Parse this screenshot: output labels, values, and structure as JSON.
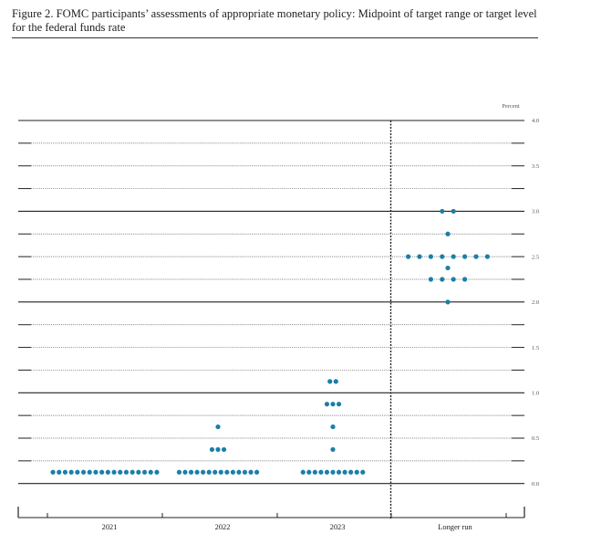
{
  "title": "Figure 2.  FOMC participants’ assessments of appropriate monetary policy: Midpoint of target range or target level for the federal funds rate",
  "chart_data": {
    "type": "scatter",
    "title": "Figure 2.  FOMC participants’ assessments of appropriate monetary policy: Midpoint of target range or target level for the federal funds rate",
    "ylabel": "Percent",
    "ylim": [
      -0.375,
      4.0
    ],
    "y_ticks": [
      {
        "value": 4.0,
        "label": "4.0"
      },
      {
        "value": 3.5,
        "label": "3.5"
      },
      {
        "value": 3.0,
        "label": "3.0"
      },
      {
        "value": 2.5,
        "label": "2.5"
      },
      {
        "value": 2.0,
        "label": "2.0"
      },
      {
        "value": 1.5,
        "label": "1.5"
      },
      {
        "value": 1.0,
        "label": "1.0"
      },
      {
        "value": 0.5,
        "label": "0.5"
      },
      {
        "value": 0.0,
        "label": "0.0"
      }
    ],
    "categories": [
      "2021",
      "2022",
      "2023",
      "Longer run"
    ],
    "dot_color": "#1a7fa8",
    "series": [
      {
        "name": "2021",
        "points": [
          {
            "y": 0.125,
            "count": 18
          }
        ]
      },
      {
        "name": "2022",
        "points": [
          {
            "y": 0.625,
            "count": 1
          },
          {
            "y": 0.375,
            "count": 3
          },
          {
            "y": 0.125,
            "count": 14
          }
        ]
      },
      {
        "name": "2023",
        "points": [
          {
            "y": 1.125,
            "count": 2
          },
          {
            "y": 0.875,
            "count": 3
          },
          {
            "y": 0.625,
            "count": 1
          },
          {
            "y": 0.375,
            "count": 1
          },
          {
            "y": 0.125,
            "count": 11
          }
        ]
      },
      {
        "name": "Longer run",
        "points": [
          {
            "y": 3.0,
            "count": 2
          },
          {
            "y": 2.75,
            "count": 1
          },
          {
            "y": 2.5,
            "count": 8
          },
          {
            "y": 2.375,
            "count": 1
          },
          {
            "y": 2.25,
            "count": 4
          },
          {
            "y": 2.0,
            "count": 1
          }
        ]
      }
    ]
  }
}
